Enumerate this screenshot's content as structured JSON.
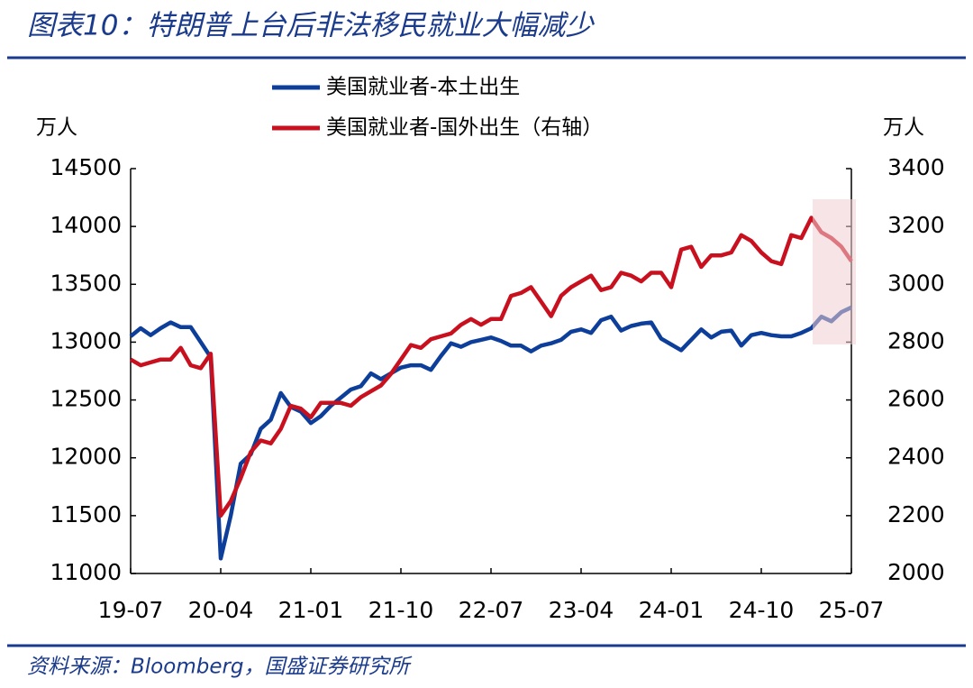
{
  "chart_data": {
    "type": "line",
    "title": "图表10：特朗普上台后非法移民就业大幅减少",
    "source": "资料来源：Bloomberg，国盛证券研究所",
    "y_unit": "万人",
    "y2_unit": "万人",
    "categories": [
      "19-07",
      null,
      null,
      null,
      null,
      null,
      null,
      null,
      null,
      "20-04",
      null,
      null,
      null,
      null,
      null,
      null,
      null,
      null,
      "21-01",
      null,
      null,
      null,
      null,
      null,
      null,
      null,
      null,
      "21-10",
      null,
      null,
      null,
      null,
      null,
      null,
      null,
      null,
      "22-07",
      null,
      null,
      null,
      null,
      null,
      null,
      null,
      null,
      "23-04",
      null,
      null,
      null,
      null,
      null,
      null,
      null,
      null,
      "24-01",
      null,
      null,
      null,
      null,
      null,
      null,
      null,
      null,
      "24-10",
      null,
      null,
      null,
      null,
      null,
      null,
      null,
      null,
      "25-07"
    ],
    "series": [
      {
        "name": "美国就业者-本土出生",
        "color": "#0d3f9a",
        "axis": "y",
        "values": [
          13050,
          13120,
          13060,
          13120,
          13170,
          13130,
          13130,
          13000,
          12870,
          11130,
          11500,
          11950,
          12030,
          12250,
          12330,
          12560,
          12440,
          12400,
          12300,
          12360,
          12450,
          12520,
          12590,
          12620,
          12730,
          12680,
          12730,
          12780,
          12800,
          12800,
          12760,
          12880,
          12990,
          12960,
          13000,
          13020,
          13040,
          13010,
          12970,
          12970,
          12920,
          12970,
          12990,
          13020,
          13090,
          13110,
          13080,
          13190,
          13220,
          13100,
          13140,
          13160,
          13170,
          13030,
          12980,
          12930,
          13020,
          13110,
          13040,
          13090,
          13100,
          12970,
          13060,
          13080,
          13060,
          13050,
          13050,
          13080,
          13120,
          13220,
          13180,
          13260,
          13300
        ]
      },
      {
        "name": "美国就业者-国外出生（右轴）",
        "color": "#c8101e",
        "axis": "y2",
        "values": [
          2740,
          2720,
          2730,
          2740,
          2740,
          2780,
          2720,
          2710,
          2760,
          2200,
          2250,
          2330,
          2420,
          2460,
          2450,
          2500,
          2580,
          2570,
          2540,
          2590,
          2590,
          2590,
          2580,
          2610,
          2630,
          2650,
          2690,
          2740,
          2790,
          2780,
          2810,
          2820,
          2830,
          2860,
          2880,
          2860,
          2880,
          2880,
          2960,
          2970,
          2990,
          2940,
          2890,
          2960,
          2990,
          3010,
          3030,
          2980,
          2990,
          3040,
          3030,
          3010,
          3040,
          3040,
          2990,
          3120,
          3130,
          3060,
          3100,
          3100,
          3110,
          3170,
          3150,
          3110,
          3080,
          3070,
          3170,
          3160,
          3230,
          3180,
          3160,
          3130,
          3080
        ]
      }
    ],
    "ylim": [
      11000,
      14500
    ],
    "yticks": [
      11000,
      11500,
      12000,
      12500,
      13000,
      13500,
      14000,
      14500
    ],
    "y2lim": [
      2000,
      3400
    ],
    "y2ticks": [
      2000,
      2200,
      2400,
      2600,
      2800,
      3000,
      3200,
      3400
    ],
    "legend": "top"
  }
}
